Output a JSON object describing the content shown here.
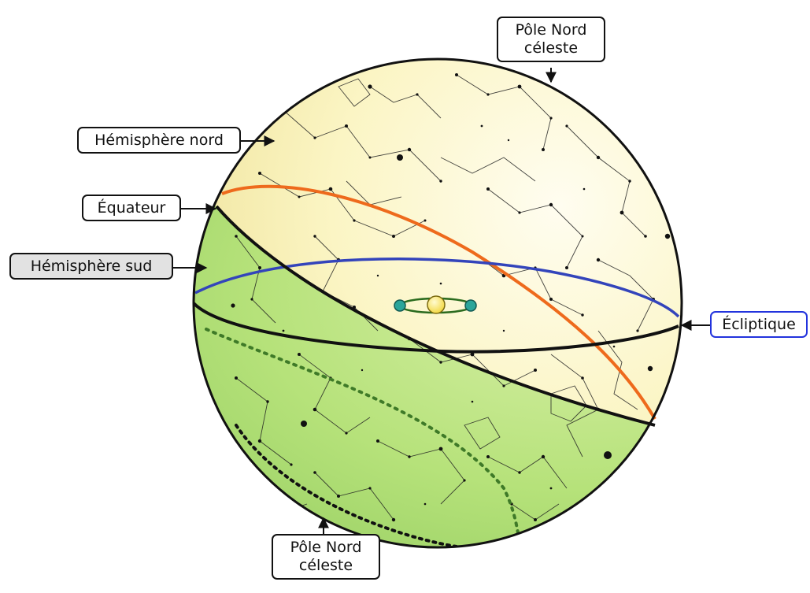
{
  "labels": {
    "north_pole_top": {
      "line1": "Pôle Nord",
      "line2": "céleste"
    },
    "north_hemisphere": "Hémisphère nord",
    "equator": "Équateur",
    "south_hemisphere": "Hémisphère sud",
    "ecliptic": "Écliptique",
    "north_pole_bottom": {
      "line1": "Pôle Nord",
      "line2": "céleste"
    }
  },
  "colors": {
    "north_fill": "#fbf5c4",
    "south_fill": "#b6e27a",
    "equator_line": "#111111",
    "ecliptic_line": "#3344bb",
    "orange_circle": "#ee6a1c",
    "ecliptic_label_border": "#2233dd",
    "sun": "#f7e35a",
    "earth": "#2aa59a"
  }
}
